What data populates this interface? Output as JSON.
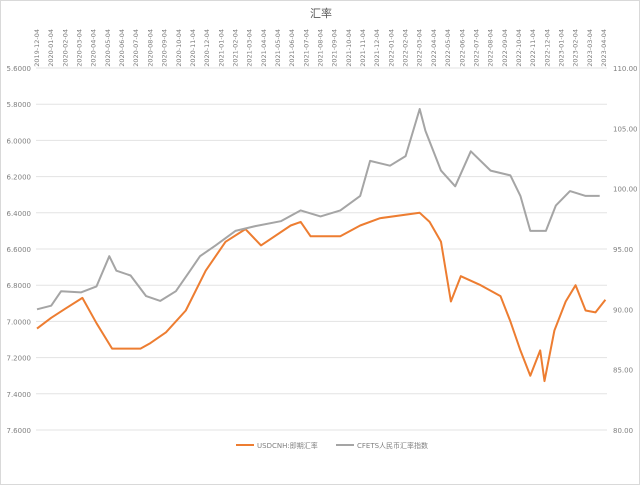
{
  "chart_data": {
    "type": "line",
    "title": "汇率",
    "x_labels": [
      "2019-12-04",
      "2020-01-04",
      "2020-02-04",
      "2020-03-04",
      "2020-04-04",
      "2020-05-04",
      "2020-06-04",
      "2020-07-04",
      "2020-08-04",
      "2020-09-04",
      "2020-10-04",
      "2020-11-04",
      "2020-12-04",
      "2021-01-04",
      "2021-02-04",
      "2021-03-04",
      "2021-04-04",
      "2021-05-04",
      "2021-06-04",
      "2021-07-04",
      "2021-08-04",
      "2021-09-04",
      "2021-10-04",
      "2021-11-04",
      "2021-12-04",
      "2022-01-04",
      "2022-02-04",
      "2022-03-04",
      "2022-04-04",
      "2022-05-04",
      "2022-06-04",
      "2022-07-04",
      "2022-08-04",
      "2022-09-04",
      "2022-10-04",
      "2022-11-04",
      "2022-12-04",
      "2023-01-04",
      "2023-02-04",
      "2023-03-04",
      "2023-04-04"
    ],
    "left_axis": {
      "ticks": [
        "5.6000",
        "5.8000",
        "6.0000",
        "6.2000",
        "6.4000",
        "6.6000",
        "6.8000",
        "7.0000",
        "7.2000",
        "7.4000",
        "7.6000"
      ],
      "min": 5.6,
      "max": 7.6,
      "inverted": true
    },
    "right_axis": {
      "ticks": [
        "110.00",
        "105.00",
        "100.00",
        "95.00",
        "90.00",
        "85.00",
        "80.00"
      ],
      "min": 80,
      "max": 110
    },
    "grid": true,
    "legend_position": "bottom",
    "series": [
      {
        "name": "USDCNH:即期汇率",
        "axis": "left",
        "color": "#ed7d31",
        "x": [
          0,
          1,
          2,
          3.2,
          4.2,
          5.3,
          7.3,
          8,
          9.1,
          10.5,
          11.9,
          13.3,
          14.7,
          15.8,
          17.9,
          18.6,
          19.3,
          21.4,
          22.8,
          24.2,
          27,
          27.7,
          28.5,
          29.2,
          29.9,
          31.3,
          32.7,
          33.4,
          34.1,
          34.8,
          35.5,
          35.8,
          36.5,
          37.3,
          38,
          38.7,
          39.4,
          40.1
        ],
        "values": [
          7.04,
          6.98,
          6.93,
          6.87,
          7.01,
          7.15,
          7.15,
          7.12,
          7.06,
          6.94,
          6.72,
          6.56,
          6.49,
          6.58,
          6.47,
          6.45,
          6.53,
          6.53,
          6.47,
          6.43,
          6.4,
          6.45,
          6.56,
          6.89,
          6.75,
          6.8,
          6.86,
          7.0,
          7.16,
          7.3,
          7.16,
          7.33,
          7.05,
          6.89,
          6.8,
          6.94,
          6.95,
          6.88
        ]
      },
      {
        "name": "CFETS人民币汇率指数",
        "axis": "right",
        "color": "#a5a5a5",
        "x": [
          0,
          1,
          1.7,
          3.1,
          4.2,
          5.1,
          5.6,
          6.6,
          7.7,
          8.7,
          9.8,
          10.8,
          11.5,
          12.6,
          14,
          15.4,
          17.2,
          18.6,
          20,
          21.4,
          22.8,
          23.5,
          24.9,
          26,
          27,
          27.4,
          28.5,
          29.5,
          30.6,
          32,
          33.4,
          34.1,
          34.8,
          35.9,
          36.6,
          37.6,
          38.7,
          39.7
        ],
        "values": [
          90.0,
          90.3,
          91.5,
          91.4,
          91.9,
          94.4,
          93.2,
          92.8,
          91.1,
          90.7,
          91.5,
          93.2,
          94.4,
          95.3,
          96.5,
          96.9,
          97.3,
          98.2,
          97.7,
          98.2,
          99.4,
          102.3,
          101.9,
          102.7,
          106.6,
          104.8,
          101.5,
          100.2,
          103.1,
          101.5,
          101.1,
          99.4,
          96.5,
          96.5,
          98.6,
          99.8,
          99.4,
          99.4
        ]
      }
    ]
  }
}
